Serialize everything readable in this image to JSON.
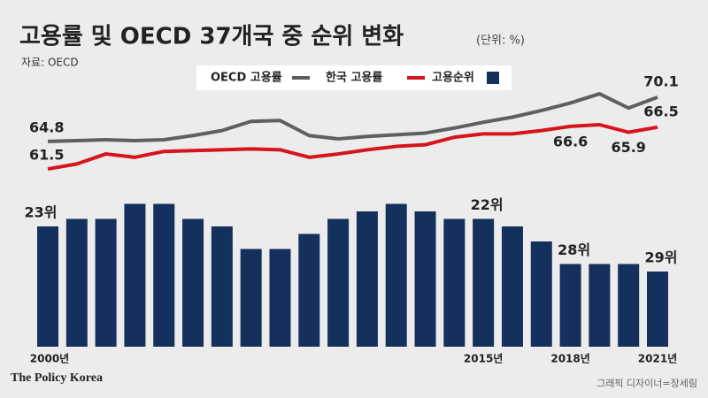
{
  "chart_data": {
    "type": "bar-line",
    "title": "고용률 및 OECD 37개국 중 순위 변화",
    "subtitle": "(단위: %)",
    "source": "자료: OECD",
    "credit": "그래픽 디자이너=장세림",
    "logo": "The Policy Korea",
    "categories": [
      "2000년",
      null,
      null,
      null,
      null,
      null,
      null,
      null,
      null,
      null,
      null,
      null,
      null,
      null,
      null,
      "2015년",
      null,
      null,
      "2018년",
      null,
      null,
      "2021년"
    ],
    "ylim": [
      56,
      74
    ],
    "y2lim": [
      39,
      18
    ],
    "series": [
      {
        "name": "OECD 고용률",
        "color": "#5f5f5f",
        "values": [
          64.8,
          64.9,
          65.0,
          64.9,
          65.0,
          65.5,
          66.1,
          67.2,
          67.3,
          65.5,
          65.1,
          65.4,
          65.6,
          65.8,
          66.4,
          67.1,
          67.7,
          68.5,
          69.4,
          70.5,
          68.8,
          70.1
        ],
        "value_labels": [
          "64.8",
          null,
          null,
          null,
          null,
          null,
          null,
          null,
          null,
          null,
          null,
          null,
          null,
          null,
          null,
          null,
          null,
          null,
          null,
          null,
          null,
          "70.1"
        ]
      },
      {
        "name": "한국 고용률",
        "color": "#d7141e",
        "values": [
          61.5,
          62.1,
          63.3,
          62.9,
          63.6,
          63.7,
          63.8,
          63.9,
          63.8,
          62.9,
          63.3,
          63.8,
          64.2,
          64.4,
          65.3,
          65.7,
          65.7,
          66.1,
          66.6,
          66.8,
          65.9,
          66.5
        ],
        "value_labels": [
          "61.5",
          null,
          null,
          null,
          null,
          null,
          null,
          null,
          null,
          null,
          null,
          null,
          null,
          null,
          null,
          null,
          null,
          null,
          "66.6",
          null,
          "65.9",
          "66.5"
        ]
      },
      {
        "name": "고용순위",
        "color": "#14305c",
        "axis": "y2",
        "values": [
          23,
          22,
          22,
          20,
          20,
          22,
          23,
          26,
          26,
          24,
          22,
          21,
          20,
          21,
          22,
          22,
          23,
          25,
          28,
          28,
          28,
          29
        ],
        "value_labels": [
          "23위",
          null,
          null,
          null,
          null,
          null,
          null,
          null,
          null,
          null,
          null,
          null,
          null,
          null,
          null,
          "22위",
          null,
          null,
          "28위",
          null,
          null,
          "29위"
        ]
      }
    ]
  }
}
